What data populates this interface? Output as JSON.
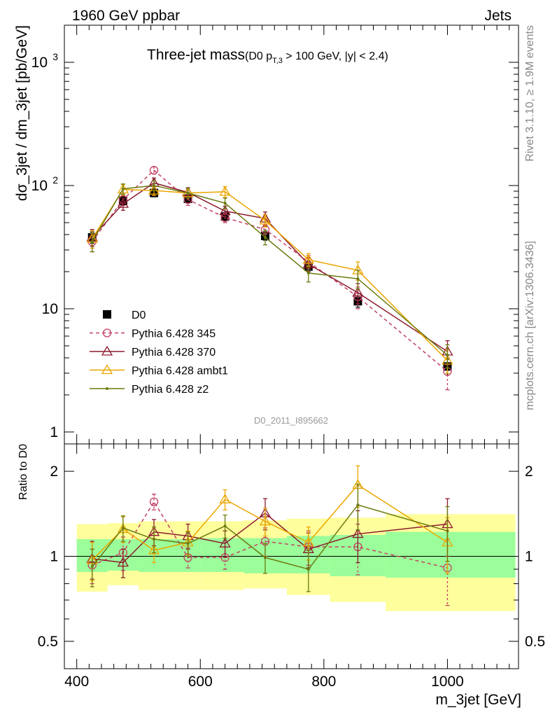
{
  "header": {
    "left": "1960 GeV ppbar",
    "right": "Jets",
    "side_top": "Rivet 3.1.10, ≥ 1.9M events",
    "side_bottom": "mcplots.cern.ch [arXiv:1306.3436]",
    "analysis_id": "D0_2011_I895662"
  },
  "chart_data": [
    {
      "type": "line",
      "title": "Three-jet mass",
      "subtitle_pre": "(D0 p",
      "subtitle_sub": "T,3",
      "subtitle_post": " > 100 GeV, |y| < 2.4)",
      "ylabel": "dσ_3jet / dm_3jet [pb/GeV]",
      "yscale": "log",
      "ylim": [
        0.8,
        2000
      ],
      "xlim": [
        380,
        1115
      ],
      "yticks": [
        {
          "v": 1,
          "label": "1"
        },
        {
          "v": 10,
          "label": "10"
        },
        {
          "v": 100,
          "label": "10",
          "exp": "2"
        },
        {
          "v": 1000,
          "label": "10",
          "exp": "3"
        }
      ],
      "legend_position": "lower-left",
      "x": [
        425,
        475,
        525,
        580,
        640,
        705,
        775,
        855,
        1000
      ],
      "series": [
        {
          "name": "D0",
          "color": "#000000",
          "marker": "square",
          "dash": false,
          "line": false,
          "values": [
            38,
            75,
            87,
            78,
            56,
            39,
            22,
            11.5,
            3.4
          ],
          "errors": [
            4,
            6,
            6,
            6,
            4.5,
            3,
            2,
            1.2,
            0.5
          ]
        },
        {
          "name": "Pythia 6.428 345",
          "color": "#c44062",
          "marker": "circle",
          "dash": true,
          "line": true,
          "values": [
            35,
            77,
            133,
            77,
            55,
            44,
            24,
            12.5,
            3.1
          ],
          "errors": [
            6,
            8,
            9,
            8,
            5,
            4,
            3,
            2.5,
            0.9
          ]
        },
        {
          "name": "Pythia 6.428 370",
          "color": "#8b1a2e",
          "marker": "triangle",
          "dash": false,
          "line": true,
          "values": [
            38,
            71,
            105,
            88,
            62,
            54,
            23,
            13.5,
            4.5
          ],
          "errors": [
            6,
            8,
            10,
            8,
            6,
            7,
            3,
            2.5,
            1
          ]
        },
        {
          "name": "Pythia 6.428 ambt1",
          "color": "#eba600",
          "marker": "triangle",
          "dash": false,
          "line": true,
          "values": [
            37,
            93,
            91,
            87,
            89,
            52,
            25,
            20.5,
            3.8
          ],
          "errors": [
            6,
            9,
            8,
            8,
            9,
            6,
            3,
            3.5,
            0.8
          ]
        },
        {
          "name": "Pythia 6.428 z2",
          "color": "#6b7a0e",
          "marker": "dot",
          "dash": false,
          "line": true,
          "values": [
            35,
            94,
            100,
            87,
            72,
            38,
            19.5,
            17.5,
            4.2
          ],
          "errors": [
            6,
            9,
            9,
            8,
            7,
            5,
            3,
            3,
            0.9
          ]
        }
      ]
    },
    {
      "type": "line",
      "ylabel": "Ratio to D0",
      "xlabel": "m_3jet [GeV]",
      "yscale": "log",
      "ylim": [
        0.4,
        2.5
      ],
      "xlim": [
        380,
        1115
      ],
      "yticks": [
        {
          "v": 0.5,
          "label": "0.5"
        },
        {
          "v": 1,
          "label": "1"
        },
        {
          "v": 2,
          "label": "2"
        }
      ],
      "xticks": [
        {
          "v": 400,
          "label": "400"
        },
        {
          "v": 600,
          "label": "600"
        },
        {
          "v": 800,
          "label": "800"
        },
        {
          "v": 1000,
          "label": "1000"
        }
      ],
      "bands": {
        "edges": [
          400,
          450,
          500,
          600,
          670,
          740,
          810,
          900,
          1110
        ],
        "inner_low": [
          0.88,
          0.89,
          0.88,
          0.88,
          0.87,
          0.87,
          0.85,
          0.84,
          0.83
        ],
        "inner_high": [
          1.15,
          1.15,
          1.15,
          1.16,
          1.16,
          1.18,
          1.19,
          1.22,
          1.25
        ],
        "outer_low": [
          0.75,
          0.79,
          0.76,
          0.76,
          0.77,
          0.73,
          0.69,
          0.64,
          0.59
        ],
        "outer_high": [
          1.3,
          1.31,
          1.33,
          1.33,
          1.34,
          1.36,
          1.37,
          1.41,
          1.45
        ],
        "inner_color": "#9bfe9a",
        "outer_color": "#fefe9c"
      },
      "x": [
        425,
        475,
        525,
        580,
        640,
        705,
        775,
        855,
        1000
      ],
      "series": [
        {
          "name": "Pythia 6.428 345",
          "color": "#c44062",
          "marker": "circle",
          "dash": true,
          "line": true,
          "values": [
            0.93,
            1.03,
            1.56,
            0.99,
            0.99,
            1.13,
            1.08,
            1.08,
            0.91
          ],
          "errors": [
            0.13,
            0.14,
            0.1,
            0.08,
            0.09,
            0.13,
            0.15,
            0.22,
            0.24
          ]
        },
        {
          "name": "Pythia 6.428 370",
          "color": "#8b1a2e",
          "marker": "triangle",
          "dash": false,
          "line": true,
          "values": [
            0.98,
            0.95,
            1.22,
            1.18,
            1.11,
            1.42,
            1.06,
            1.2,
            1.3
          ],
          "errors": [
            0.15,
            0.11,
            0.13,
            0.12,
            0.12,
            0.18,
            0.15,
            0.25,
            0.3
          ]
        },
        {
          "name": "Pythia 6.428 ambt1",
          "color": "#eba600",
          "marker": "triangle",
          "dash": false,
          "line": true,
          "values": [
            0.97,
            1.25,
            1.05,
            1.12,
            1.59,
            1.33,
            1.12,
            1.79,
            1.12
          ],
          "errors": [
            0.15,
            0.13,
            0.1,
            0.11,
            0.13,
            0.15,
            0.15,
            0.3,
            0.25
          ]
        },
        {
          "name": "Pythia 6.428 z2",
          "color": "#6b7a0e",
          "marker": "dot",
          "dash": false,
          "line": true,
          "values": [
            0.92,
            1.26,
            1.15,
            1.11,
            1.28,
            0.99,
            0.9,
            1.52,
            1.23
          ],
          "errors": [
            0.14,
            0.13,
            0.12,
            0.11,
            0.12,
            0.12,
            0.15,
            0.28,
            0.27
          ]
        }
      ]
    }
  ]
}
